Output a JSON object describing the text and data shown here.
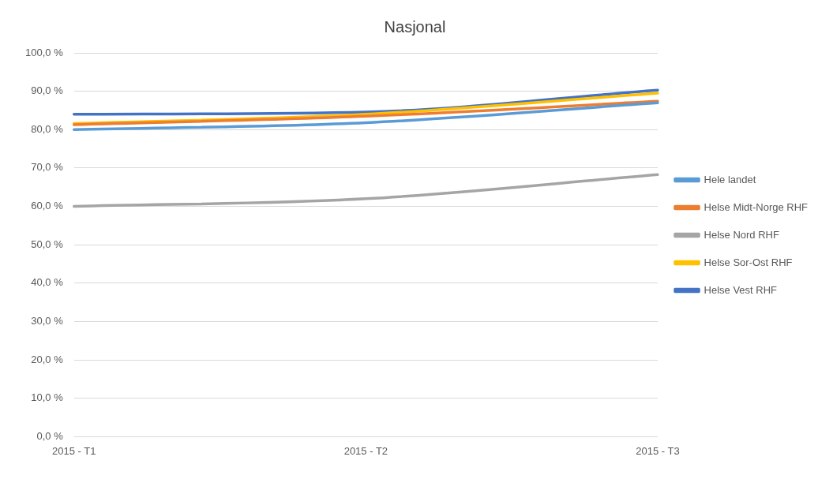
{
  "chart_data": {
    "type": "line",
    "title": "Nasjonal",
    "categories": [
      "2015 - T1",
      "2015 - T2",
      "2015 - T3"
    ],
    "series": [
      {
        "name": "Hele landet",
        "color": "#5b9bd5",
        "values": [
          80.0,
          81.8,
          87.0
        ]
      },
      {
        "name": "Helse Midt-Norge RHF",
        "color": "#ed7d31",
        "values": [
          81.3,
          83.5,
          87.4
        ]
      },
      {
        "name": "Helse Nord RHF",
        "color": "#a5a5a5",
        "values": [
          60.0,
          62.0,
          68.3
        ]
      },
      {
        "name": "Helse Sor-Ost RHF",
        "color": "#ffc000",
        "values": [
          81.6,
          84.0,
          89.5
        ]
      },
      {
        "name": "Helse Vest RHF",
        "color": "#4472c4",
        "values": [
          84.0,
          84.6,
          90.3
        ]
      }
    ],
    "ylim": [
      0,
      100
    ],
    "yticks": [
      {
        "value": 0,
        "label": "0,0 %"
      },
      {
        "value": 10,
        "label": "10,0 %"
      },
      {
        "value": 20,
        "label": "20,0 %"
      },
      {
        "value": 30,
        "label": "30,0 %"
      },
      {
        "value": 40,
        "label": "40,0 %"
      },
      {
        "value": 50,
        "label": "50,0 %"
      },
      {
        "value": 60,
        "label": "60,0 %"
      },
      {
        "value": 70,
        "label": "70,0 %"
      },
      {
        "value": 80,
        "label": "80,0 %"
      },
      {
        "value": 90,
        "label": "90,0 %"
      },
      {
        "value": 100,
        "label": "100,0 %"
      }
    ],
    "grid": "y",
    "legend": "right",
    "marker": "none",
    "line_style": "solid"
  }
}
